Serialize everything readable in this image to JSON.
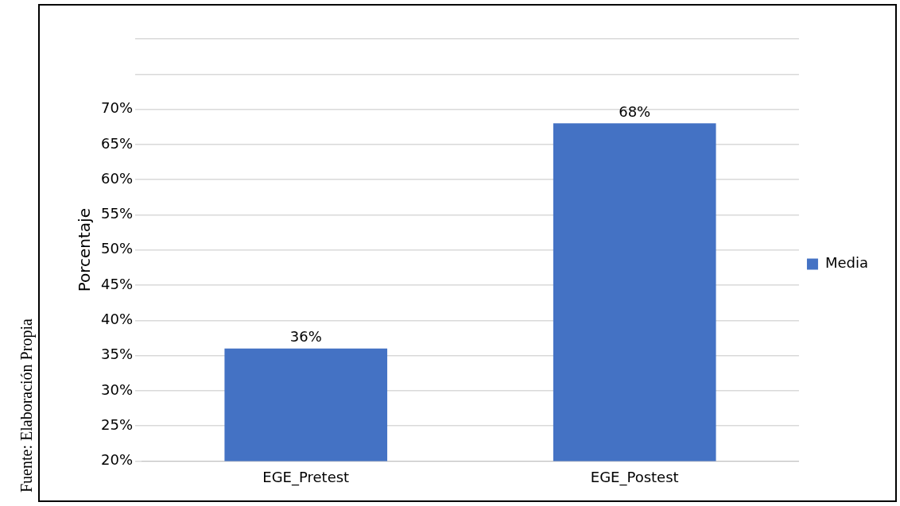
{
  "chart_data": {
    "type": "bar",
    "ylabel": "Porcentaje",
    "categories": [
      "EGE_Pretest",
      "EGE_Postest"
    ],
    "series": [
      {
        "name": "Media",
        "color": "#4472c4",
        "values": [
          36,
          68
        ],
        "value_labels": [
          "36%",
          "68%"
        ]
      }
    ],
    "ylim": [
      20,
      80
    ],
    "yticks": [
      {
        "value": 20,
        "label": "20%"
      },
      {
        "value": 25,
        "label": "25%"
      },
      {
        "value": 30,
        "label": "30%"
      },
      {
        "value": 35,
        "label": "35%"
      },
      {
        "value": 40,
        "label": "40%"
      },
      {
        "value": 45,
        "label": "45%"
      },
      {
        "value": 50,
        "label": "50%"
      },
      {
        "value": 55,
        "label": "55%"
      },
      {
        "value": 60,
        "label": "60%"
      },
      {
        "value": 65,
        "label": "65%"
      },
      {
        "value": 70,
        "label": "70%"
      },
      {
        "value": 75,
        "label": null
      },
      {
        "value": 80,
        "label": null
      }
    ],
    "grid": "y",
    "legend": "right",
    "annotations": [
      "Fuente: Elaboración Propia"
    ]
  }
}
